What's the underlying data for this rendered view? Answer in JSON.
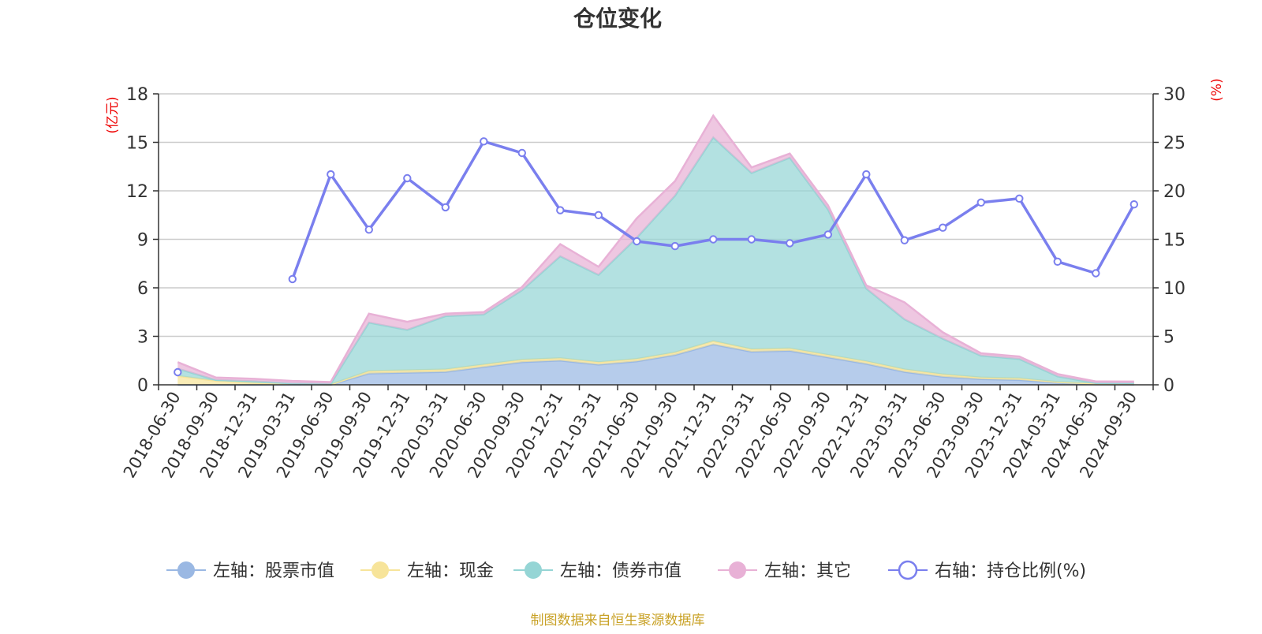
{
  "chart_data": {
    "type": "area",
    "title": "仓位变化",
    "source": "制图数据来自恒生聚源数据库",
    "left_axis": {
      "label": "(亿元)",
      "ylim": [
        0,
        18
      ],
      "ticks": [
        0,
        3,
        6,
        9,
        12,
        15,
        18
      ]
    },
    "right_axis": {
      "label": "(%)",
      "ylim": [
        0,
        30
      ],
      "ticks": [
        0,
        5,
        10,
        15,
        20,
        25,
        30
      ]
    },
    "x": [
      "2018-06-30",
      "2018-09-30",
      "2018-12-31",
      "2019-03-31",
      "2019-06-30",
      "2019-09-30",
      "2019-12-31",
      "2020-03-31",
      "2020-06-30",
      "2020-09-30",
      "2020-12-31",
      "2021-03-31",
      "2021-06-30",
      "2021-09-30",
      "2021-12-31",
      "2022-03-31",
      "2022-06-30",
      "2022-09-30",
      "2022-12-31",
      "2023-03-31",
      "2023-06-30",
      "2023-09-30",
      "2023-12-31",
      "2024-03-31",
      "2024-06-30",
      "2024-09-30"
    ],
    "series": [
      {
        "name": "左轴：股票市值",
        "axis": "left",
        "type": "stacked-area",
        "color": "#9ab8e3",
        "values": [
          0.0,
          0.0,
          0.0,
          0.02,
          0.0,
          0.7,
          0.75,
          0.8,
          1.1,
          1.4,
          1.5,
          1.25,
          1.45,
          1.85,
          2.5,
          2.05,
          2.1,
          1.7,
          1.3,
          0.8,
          0.5,
          0.35,
          0.3,
          0.12,
          0.03,
          0.02
        ]
      },
      {
        "name": "左轴：现金",
        "axis": "left",
        "type": "stacked-area",
        "color": "#f7e49a",
        "values": [
          0.55,
          0.25,
          0.12,
          0.02,
          0.02,
          0.15,
          0.15,
          0.15,
          0.15,
          0.15,
          0.15,
          0.15,
          0.15,
          0.15,
          0.2,
          0.15,
          0.15,
          0.15,
          0.15,
          0.15,
          0.15,
          0.1,
          0.1,
          0.05,
          0.05,
          0.05
        ]
      },
      {
        "name": "左轴：债券市值",
        "axis": "left",
        "type": "stacked-area",
        "color": "#95d5d5",
        "values": [
          0.45,
          0.05,
          0.1,
          0.05,
          0.05,
          3.0,
          2.5,
          3.3,
          3.1,
          4.3,
          6.3,
          5.4,
          7.5,
          9.7,
          12.6,
          10.9,
          11.8,
          9.0,
          4.5,
          3.1,
          2.2,
          1.35,
          1.2,
          0.35,
          0.03,
          0.03
        ]
      },
      {
        "name": "左轴：其它",
        "axis": "left",
        "type": "stacked-area",
        "color": "#e8b1d6",
        "values": [
          0.4,
          0.15,
          0.15,
          0.15,
          0.1,
          0.55,
          0.5,
          0.15,
          0.15,
          0.2,
          0.75,
          0.5,
          1.2,
          0.9,
          1.35,
          0.35,
          0.25,
          0.25,
          0.2,
          1.05,
          0.4,
          0.15,
          0.15,
          0.15,
          0.1,
          0.1
        ]
      },
      {
        "name": "右轴：持仓比例(%)",
        "axis": "right",
        "type": "line",
        "color": "#7a7fee",
        "values": [
          1.3,
          null,
          null,
          10.9,
          21.7,
          16.0,
          21.3,
          18.3,
          25.1,
          23.9,
          18.0,
          17.5,
          14.8,
          14.3,
          15.0,
          15.0,
          14.6,
          15.5,
          21.7,
          14.9,
          16.2,
          18.8,
          19.2,
          12.7,
          11.5,
          18.6
        ]
      }
    ],
    "legend_position": "bottom-center",
    "grid": true
  },
  "colors": {
    "title": "#333333",
    "axis_label": "#ee0000",
    "tick_text": "#333333",
    "grid": "#cccccc",
    "axis_line": "#333333",
    "source": "#c9a227"
  }
}
